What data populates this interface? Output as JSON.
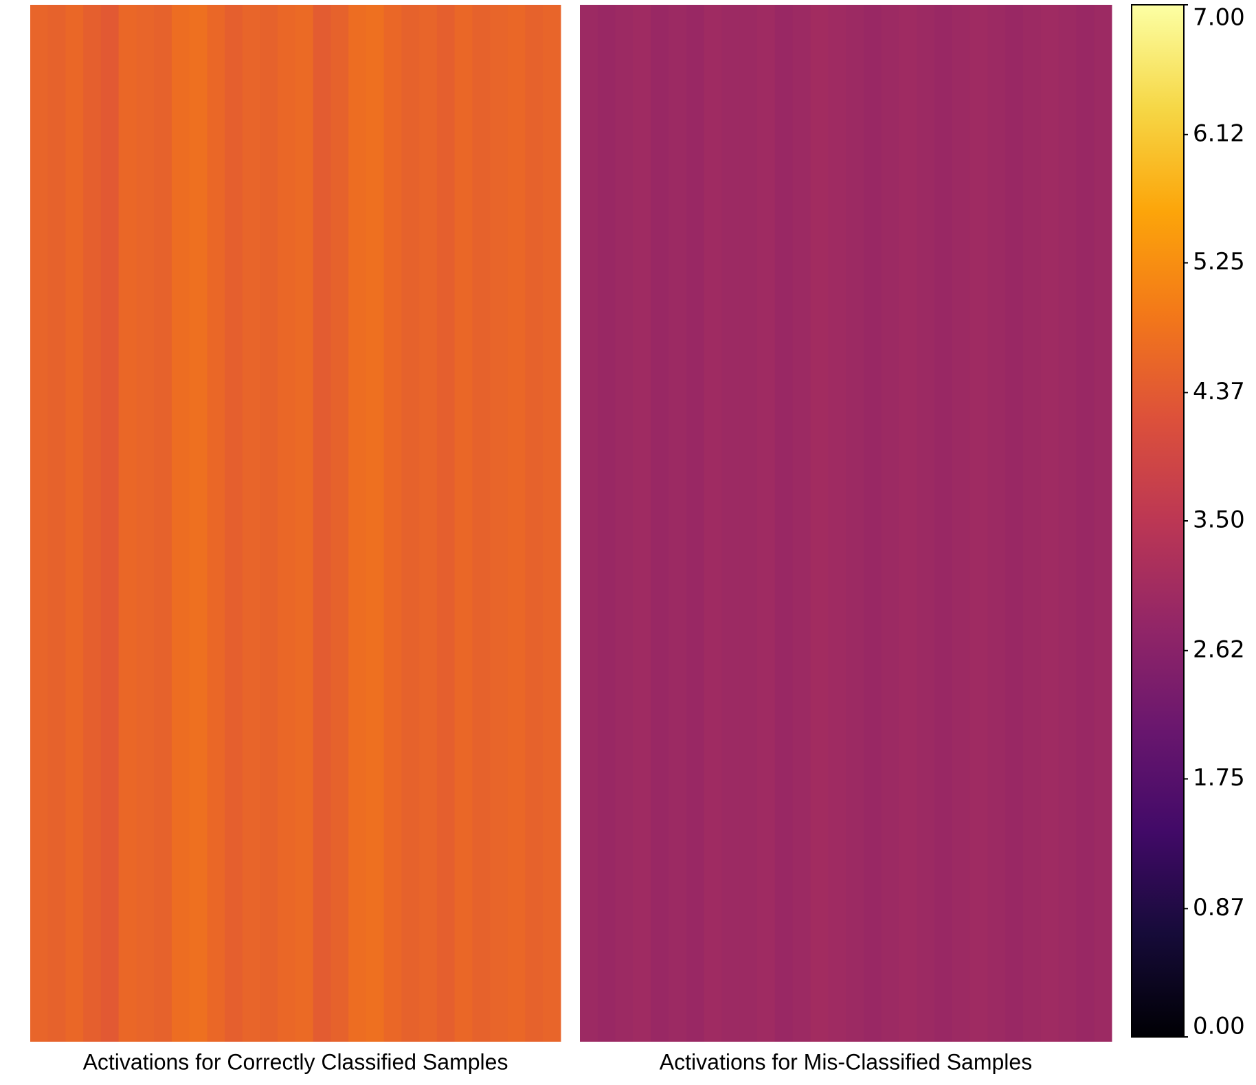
{
  "chart_data": {
    "type": "heatmap",
    "colormap": "inferno",
    "clim": [
      0,
      7
    ],
    "cticks": [
      {
        "value": 0,
        "label": "0.00"
      },
      {
        "value": 0.87,
        "label": "0.87"
      },
      {
        "value": 1.75,
        "label": "1.75"
      },
      {
        "value": 2.62,
        "label": "2.62"
      },
      {
        "value": 3.5,
        "label": "3.50"
      },
      {
        "value": 4.37,
        "label": "4.37"
      },
      {
        "value": 5.25,
        "label": "5.25"
      },
      {
        "value": 6.12,
        "label": "6.12"
      },
      {
        "value": 7,
        "label": "7.00"
      }
    ],
    "panels": [
      {
        "title": "Activations for Correctly Classified Samples",
        "values": [
          4.55,
          4.5,
          4.6,
          4.45,
          4.35,
          4.6,
          4.55,
          4.5,
          4.7,
          4.75,
          4.6,
          4.45,
          4.55,
          4.5,
          4.6,
          4.65,
          4.4,
          4.5,
          4.7,
          4.75,
          4.6,
          4.5,
          4.55,
          4.45,
          4.6,
          4.5,
          4.55,
          4.6,
          4.5,
          4.55
        ]
      },
      {
        "title": "Activations for Mis-Classified Samples",
        "values": [
          2.95,
          2.9,
          2.95,
          3.0,
          2.9,
          2.95,
          2.9,
          3.0,
          2.95,
          2.95,
          3.0,
          2.9,
          2.95,
          3.05,
          3.0,
          2.95,
          2.9,
          2.95,
          3.0,
          2.95,
          2.9,
          2.95,
          3.0,
          2.95,
          2.9,
          2.95,
          3.0,
          2.95,
          2.9,
          2.95
        ]
      }
    ]
  }
}
